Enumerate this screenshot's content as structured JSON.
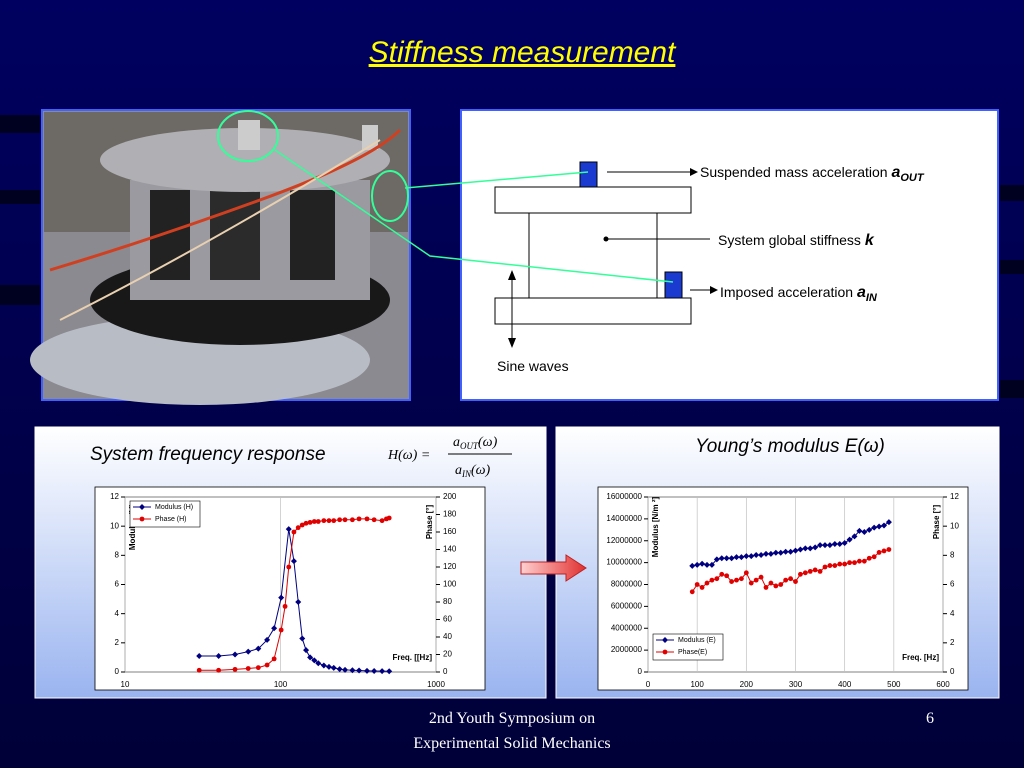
{
  "title": "Stiffness measurement",
  "diagram": {
    "out_label": "Suspended mass acceleration",
    "out_symbol": "a",
    "out_sub": "OUT",
    "k_label": "System global stiffness",
    "k_symbol": "k",
    "in_label": "Imposed acceleration",
    "in_symbol": "a",
    "in_sub": "IN",
    "sine_label": "Sine waves"
  },
  "formula": {
    "lhs": "H(ω) =",
    "num": "a",
    "num_sub": "OUT",
    "num_tail": "(ω)",
    "den": "a",
    "den_sub": "IN",
    "den_tail": "(ω)"
  },
  "footer": {
    "line1": "2nd Youth Symposium on",
    "line2": "Experimental Solid Mechanics",
    "page": "6"
  },
  "chart_data": [
    {
      "type": "line",
      "title": "System frequency response",
      "xscale": "log",
      "xlim": [
        10,
        1000
      ],
      "xticks": [
        10,
        100,
        1000
      ],
      "ylim": [
        0,
        12
      ],
      "yticks": [
        0,
        2,
        4,
        6,
        8,
        10,
        12
      ],
      "y2lim": [
        0,
        200
      ],
      "y2ticks": [
        0,
        20,
        40,
        60,
        80,
        100,
        120,
        140,
        160,
        180,
        200
      ],
      "y_label": "Modulus (H)",
      "y2_label": "Phase [°]",
      "x_label": "Freq. [[Hz]",
      "legend": "upper left",
      "grid": true,
      "series": [
        {
          "name": "Modulus (H)",
          "color": "#000080",
          "marker": "diamond",
          "x": [
            30,
            40,
            51,
            62,
            72,
            82,
            91,
            101,
            113,
            122,
            130,
            138,
            146,
            155,
            165,
            175,
            190,
            205,
            220,
            240,
            260,
            290,
            320,
            360,
            400,
            450,
            500
          ],
          "values": [
            1.1,
            1.1,
            1.2,
            1.4,
            1.6,
            2.2,
            3.0,
            5.1,
            9.8,
            7.6,
            4.8,
            2.3,
            1.5,
            1.0,
            0.8,
            0.6,
            0.45,
            0.35,
            0.28,
            0.2,
            0.15,
            0.12,
            0.1,
            0.08,
            0.07,
            0.06,
            0.05
          ]
        },
        {
          "name": "Phase (H)",
          "color": "#e00000",
          "marker": "circle",
          "axis": "y2",
          "x": [
            30,
            40,
            51,
            62,
            72,
            82,
            91,
            101,
            107,
            113,
            122,
            130,
            138,
            146,
            155,
            165,
            175,
            190,
            205,
            220,
            240,
            260,
            290,
            320,
            360,
            400,
            450,
            480,
            500
          ],
          "values": [
            2,
            2,
            3,
            4,
            5,
            8,
            15,
            48,
            75,
            120,
            160,
            165,
            168,
            170,
            171,
            172,
            172,
            173,
            173,
            173,
            174,
            174,
            174,
            175,
            175,
            174,
            173,
            175,
            176
          ]
        }
      ]
    },
    {
      "type": "line",
      "title": "Young’s modulus E(ω)",
      "xscale": "linear",
      "xlim": [
        0,
        600
      ],
      "xticks": [
        0,
        100,
        200,
        300,
        400,
        500,
        600
      ],
      "ylim": [
        0,
        16000000
      ],
      "yticks": [
        0,
        2000000,
        4000000,
        6000000,
        8000000,
        10000000,
        12000000,
        14000000,
        16000000
      ],
      "y2lim": [
        0,
        12
      ],
      "y2ticks": [
        0,
        2,
        4,
        6,
        8,
        10,
        12
      ],
      "y_label": "Modulus [N/m ²]",
      "y2_label": "Phase [°]",
      "x_label": "Freq. [Hz]",
      "legend": "lower left",
      "grid": true,
      "series": [
        {
          "name": "Modulus (E)",
          "color": "#000080",
          "marker": "diamond",
          "x": [
            90,
            100,
            110,
            120,
            130,
            140,
            150,
            160,
            170,
            180,
            190,
            200,
            210,
            220,
            230,
            240,
            250,
            260,
            270,
            280,
            290,
            300,
            310,
            320,
            330,
            340,
            350,
            360,
            370,
            380,
            390,
            400,
            410,
            420,
            430,
            440,
            450,
            460,
            470,
            480,
            490
          ],
          "values": [
            9700000,
            9800000,
            9900000,
            9800000,
            9800000,
            10300000,
            10400000,
            10400000,
            10400000,
            10500000,
            10500000,
            10600000,
            10600000,
            10700000,
            10700000,
            10800000,
            10800000,
            10900000,
            10900000,
            11000000,
            11000000,
            11100000,
            11200000,
            11300000,
            11300000,
            11400000,
            11600000,
            11600000,
            11600000,
            11700000,
            11700000,
            11800000,
            12100000,
            12400000,
            12900000,
            12800000,
            13000000,
            13200000,
            13300000,
            13400000,
            13700000
          ]
        },
        {
          "name": "Phase(E)",
          "color": "#e00000",
          "marker": "circle",
          "axis": "y2",
          "x": [
            90,
            100,
            110,
            120,
            130,
            140,
            150,
            160,
            170,
            180,
            190,
            200,
            210,
            220,
            230,
            240,
            250,
            260,
            270,
            280,
            290,
            300,
            310,
            320,
            330,
            340,
            350,
            360,
            370,
            380,
            390,
            400,
            410,
            420,
            430,
            440,
            450,
            460,
            470,
            480,
            490
          ],
          "values": [
            5.5,
            6.0,
            5.8,
            6.1,
            6.3,
            6.4,
            6.7,
            6.6,
            6.2,
            6.3,
            6.4,
            6.8,
            6.1,
            6.3,
            6.5,
            5.8,
            6.1,
            5.9,
            6.0,
            6.3,
            6.4,
            6.2,
            6.7,
            6.8,
            6.9,
            7.0,
            6.9,
            7.2,
            7.3,
            7.3,
            7.4,
            7.4,
            7.5,
            7.5,
            7.6,
            7.6,
            7.8,
            7.9,
            8.2,
            8.3,
            8.4
          ]
        }
      ]
    }
  ]
}
